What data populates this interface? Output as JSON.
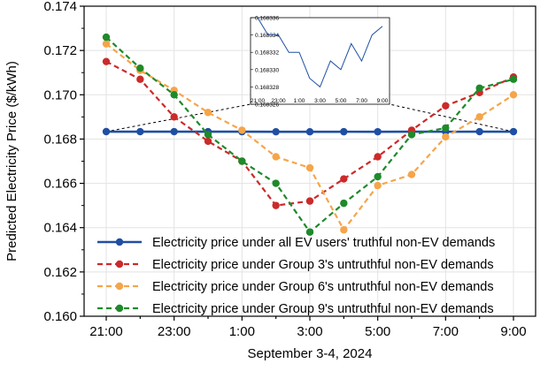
{
  "chart_data": {
    "type": "line",
    "xlabel": "September 3-4, 2024",
    "ylabel": "Predicted Electricity Price ($/kWh)",
    "ylim": [
      0.16,
      0.174
    ],
    "yticks": [
      "0.160",
      "0.162",
      "0.164",
      "0.166",
      "0.168",
      "0.170",
      "0.172",
      "0.174"
    ],
    "x": [
      "21:00",
      "22:00",
      "23:00",
      "0:00",
      "1:00",
      "2:00",
      "3:00",
      "4:00",
      "5:00",
      "6:00",
      "7:00",
      "8:00",
      "9:00"
    ],
    "xticks": [
      "21:00",
      "23:00",
      "1:00",
      "3:00",
      "5:00",
      "7:00",
      "9:00"
    ],
    "grid": true,
    "legend_position": "bottom-left",
    "series": [
      {
        "name": "Electricity price under all EV users' truthful non-EV demands",
        "color": "#1f4fa3",
        "dashed": false,
        "values": [
          0.168336,
          0.168334,
          0.168334,
          0.168332,
          0.168332,
          0.168329,
          0.168328,
          0.168331,
          0.16833,
          0.168333,
          0.168331,
          0.168334,
          0.168335
        ]
      },
      {
        "name": "Electricity price under Group 3's untruthful non-EV demands",
        "color": "#cc2a2a",
        "dashed": true,
        "values": [
          0.1715,
          0.1707,
          0.169,
          0.1679,
          0.167,
          0.165,
          0.1652,
          0.1662,
          0.1672,
          0.1684,
          0.1695,
          0.1701,
          0.1708
        ]
      },
      {
        "name": "Electricity price under Group 6's untruthful non-EV demands",
        "color": "#f5a54a",
        "dashed": true,
        "values": [
          0.1723,
          0.1711,
          0.1702,
          0.1692,
          0.1684,
          0.1672,
          0.1667,
          0.1639,
          0.1659,
          0.1664,
          0.1681,
          0.169,
          0.17
        ]
      },
      {
        "name": "Electricity price under Group 9's untruthful non-EV demands",
        "color": "#1e8a2a",
        "dashed": true,
        "values": [
          0.1726,
          0.1712,
          0.17,
          0.1682,
          0.167,
          0.166,
          0.1638,
          0.1651,
          0.1663,
          0.1682,
          0.1685,
          0.1703,
          0.1707
        ]
      }
    ],
    "inset": {
      "series_index": 0,
      "ylim": [
        0.168326,
        0.168336
      ],
      "yticks": [
        "0.168336",
        "0.168334",
        "0.168332",
        "0.168330",
        "0.168328",
        "0.168326"
      ],
      "xticks": [
        "21:00",
        "23:00",
        "1:00",
        "3:00",
        "5:00",
        "7:00",
        "9:00"
      ]
    }
  }
}
